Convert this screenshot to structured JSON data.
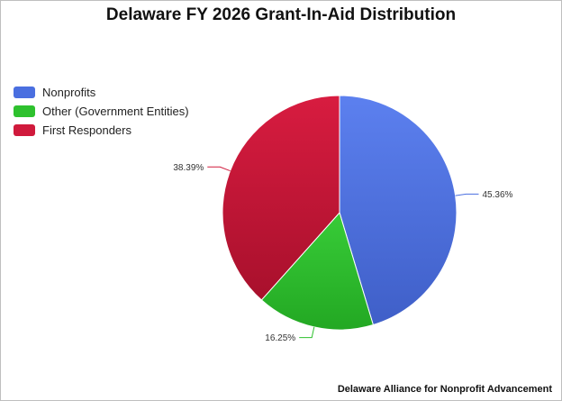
{
  "chart_data": {
    "type": "pie",
    "title": "Delaware FY 2026 Grant-In-Aid Distribution",
    "legend_position": "top-left",
    "categories": [
      "Nonprofits",
      "Other (Government Entities)",
      "First Responders"
    ],
    "values": [
      45.36,
      16.25,
      38.39
    ],
    "value_labels": [
      "45.36%",
      "16.25%",
      "38.39%"
    ],
    "colors": [
      "#4a6fe0",
      "#2ec12e",
      "#d01a3c"
    ],
    "source": "Delaware Alliance for Nonprofit Advancement"
  }
}
